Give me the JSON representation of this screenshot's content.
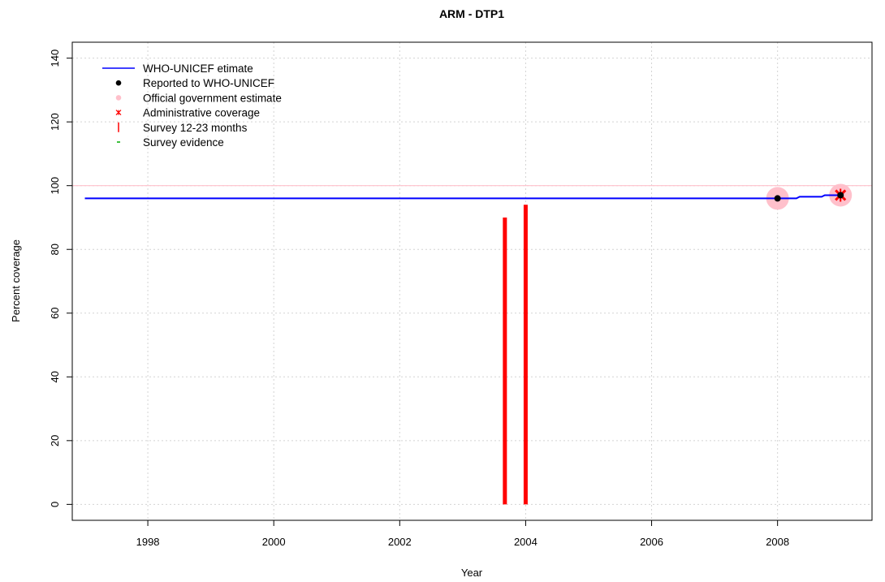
{
  "chart_data": {
    "type": "line",
    "title": "ARM  -  DTP1",
    "xlabel": "Year",
    "ylabel": "Percent coverage",
    "xlim": [
      1996.8,
      2009.5
    ],
    "ylim": [
      -5,
      145
    ],
    "x_ticks": [
      1998,
      2000,
      2002,
      2004,
      2006,
      2008
    ],
    "x_tick_labels": [
      "1998",
      "2000",
      "2002",
      "2004",
      "2006",
      "2008"
    ],
    "y_ticks": [
      0,
      20,
      40,
      60,
      80,
      100,
      120,
      140
    ],
    "y_tick_labels": [
      "0",
      "20",
      "40",
      "60",
      "80",
      "100",
      "120",
      "140"
    ],
    "grid": true,
    "reference_line": {
      "y": 100,
      "color": "#ffc0cb"
    },
    "legend": {
      "position": "top-left",
      "entries": [
        {
          "label": "WHO-UNICEF etimate",
          "symbol": "line",
          "color": "#0000ff"
        },
        {
          "label": "Reported to WHO-UNICEF",
          "symbol": "dot",
          "color": "#000000"
        },
        {
          "label": "Official government estimate",
          "symbol": "dot",
          "color": "#ffc0cb"
        },
        {
          "label": "Administrative coverage",
          "symbol": "star",
          "color": "#ff0000"
        },
        {
          "label": "Survey 12-23 months",
          "symbol": "bar",
          "color": "#ff0000"
        },
        {
          "label": "Survey evidence",
          "symbol": "dash",
          "color": "#00aa00"
        }
      ]
    },
    "series": [
      {
        "name": "WHO-UNICEF etimate",
        "kind": "step-line",
        "color": "#0000ff",
        "points": [
          [
            1997,
            96
          ],
          [
            2008,
            96
          ],
          [
            2008.3,
            96
          ],
          [
            2008.35,
            96.5
          ],
          [
            2008.7,
            96.5
          ],
          [
            2008.75,
            97
          ],
          [
            2009,
            97
          ]
        ]
      },
      {
        "name": "Reported to WHO-UNICEF",
        "kind": "points",
        "color": "#000000",
        "points": [
          [
            2008,
            96
          ],
          [
            2009,
            97
          ]
        ]
      },
      {
        "name": "Official government estimate",
        "kind": "points",
        "color": "#ffc0cb",
        "points": [
          [
            2008,
            96
          ],
          [
            2009,
            97
          ]
        ]
      },
      {
        "name": "Administrative coverage",
        "kind": "points",
        "color": "#ff0000",
        "points": [
          [
            2009,
            97
          ]
        ]
      },
      {
        "name": "Survey 12-23 months",
        "kind": "vertical-bars",
        "color": "#ff0000",
        "bars": [
          {
            "x": 2003.67,
            "y0": 0,
            "y1": 90
          },
          {
            "x": 2004.0,
            "y0": 0,
            "y1": 94
          }
        ]
      }
    ]
  }
}
